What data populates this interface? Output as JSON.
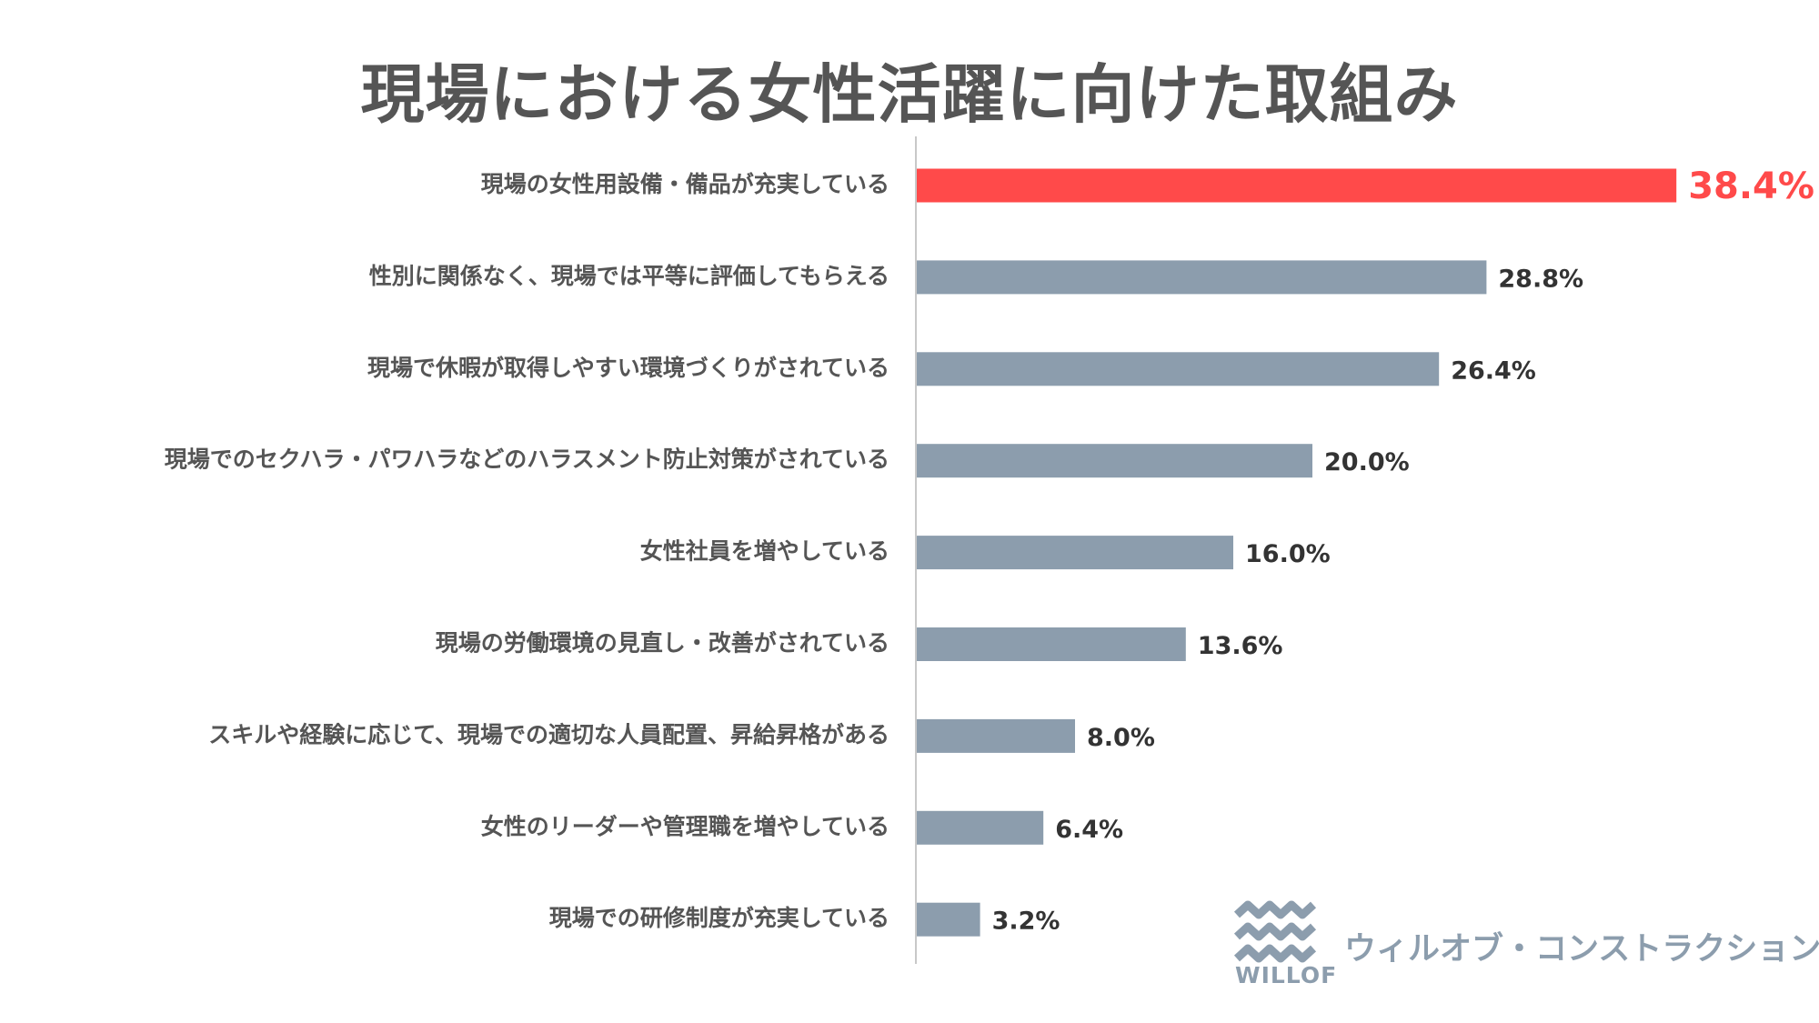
{
  "chart_data": {
    "type": "bar",
    "orientation": "horizontal",
    "title": "現場における女性活躍に向けた取組み",
    "categories": [
      "現場の女性用設備・備品が充実している",
      "性別に関係なく、現場では平等に評価してもらえる",
      "現場で休暇が取得しやすい環境づくりがされている",
      "現場でのセクハラ・パワハラなどのハラスメント防止対策がされている",
      "女性社員を増やしている",
      "現場の労働環境の見直し・改善がされている",
      "スキルや経験に応じて、現場での適切な人員配置、昇給昇格がある",
      "女性のリーダーや管理職を増やしている",
      "現場での研修制度が充実している"
    ],
    "values": [
      38.4,
      28.8,
      26.4,
      20.0,
      16.0,
      13.6,
      8.0,
      6.4,
      3.2
    ],
    "value_labels": [
      "38.4%",
      "28.8%",
      "26.4%",
      "20.0%",
      "16.0%",
      "13.6%",
      "8.0%",
      "6.4%",
      "3.2%"
    ],
    "unit": "%",
    "xlim": [
      0,
      40
    ],
    "highlight_index": 0,
    "colors": {
      "highlight": "#ff4a4a",
      "default": "#8c9dad",
      "axis": "#c8c8c8"
    },
    "xlabel": "",
    "ylabel": ""
  },
  "logo": {
    "company_name": "ウィルオブ・コンストラクション",
    "wordmark": "WILLOF",
    "icon": "wave-logo-icon"
  }
}
